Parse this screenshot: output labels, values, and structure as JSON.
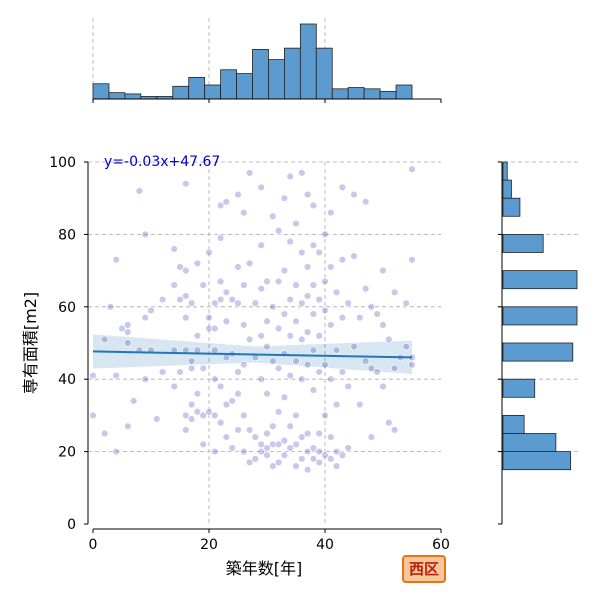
{
  "chart_data": {
    "type": "scatter",
    "xlabel": "築年数[年]",
    "ylabel": "専有面積[m2]",
    "xlim": [
      0,
      60
    ],
    "ylim": [
      0,
      100
    ],
    "xticks": [
      "0",
      "20",
      "40",
      "60"
    ],
    "yticks": [
      "0",
      "20",
      "40",
      "60",
      "80",
      "100"
    ],
    "grid": true,
    "annotation": "y=-0.03x+47.67",
    "regression": {
      "slope": -0.03,
      "intercept": 47.67,
      "x_range": [
        0,
        55
      ]
    },
    "point_color": "#3838b8",
    "line_color": "#1f77b4",
    "hist_color": "#5b9bd0",
    "top_histogram": {
      "bin_edges": [
        0,
        2.75,
        5.5,
        8.25,
        11,
        13.75,
        16.5,
        19.25,
        22,
        24.75,
        27.5,
        30.25,
        33,
        35.75,
        38.5,
        41.25,
        44,
        46.75,
        49.5,
        52.25,
        55
      ],
      "counts": [
        12,
        5,
        4,
        2,
        2,
        10,
        17,
        11,
        23,
        20,
        39,
        31,
        40,
        59,
        40,
        8,
        9,
        8,
        6,
        11
      ]
    },
    "right_histogram": {
      "bin_edges": [
        15,
        20,
        25,
        30,
        35,
        40,
        45,
        50,
        55,
        60,
        65,
        70,
        75,
        80,
        85,
        90,
        95,
        100
      ],
      "counts": [
        32,
        25,
        10,
        0,
        15,
        0,
        33,
        0,
        35,
        0,
        35,
        0,
        19,
        0,
        8,
        4,
        2
      ]
    },
    "points": [
      [
        0,
        30
      ],
      [
        0,
        41
      ],
      [
        2,
        51
      ],
      [
        2,
        25
      ],
      [
        3,
        60
      ],
      [
        4,
        73
      ],
      [
        4,
        41
      ],
      [
        4,
        20
      ],
      [
        5,
        54
      ],
      [
        6,
        55
      ],
      [
        6,
        53
      ],
      [
        6,
        50
      ],
      [
        6,
        27
      ],
      [
        7,
        34
      ],
      [
        8,
        92
      ],
      [
        8,
        48
      ],
      [
        9,
        80
      ],
      [
        9,
        57
      ],
      [
        9,
        40
      ],
      [
        10,
        59
      ],
      [
        10,
        48
      ],
      [
        11,
        29
      ],
      [
        12,
        62
      ],
      [
        12,
        42
      ],
      [
        14,
        76
      ],
      [
        14,
        66
      ],
      [
        14,
        48
      ],
      [
        14,
        38
      ],
      [
        15,
        71
      ],
      [
        15,
        62
      ],
      [
        15,
        42
      ],
      [
        16,
        94
      ],
      [
        16,
        70
      ],
      [
        16,
        63
      ],
      [
        16,
        57
      ],
      [
        16,
        48
      ],
      [
        16,
        30
      ],
      [
        16,
        26
      ],
      [
        17,
        61
      ],
      [
        17,
        45
      ],
      [
        17,
        43
      ],
      [
        17,
        33
      ],
      [
        17,
        29
      ],
      [
        18,
        72
      ],
      [
        18,
        52
      ],
      [
        18,
        48
      ],
      [
        18,
        36
      ],
      [
        18,
        31
      ],
      [
        19,
        66
      ],
      [
        19,
        43
      ],
      [
        19,
        30
      ],
      [
        19,
        22
      ],
      [
        20,
        75
      ],
      [
        20,
        57
      ],
      [
        20,
        54
      ],
      [
        20,
        31
      ],
      [
        21,
        61
      ],
      [
        21,
        54
      ],
      [
        21,
        48
      ],
      [
        21,
        40
      ],
      [
        21,
        30
      ],
      [
        21,
        20
      ],
      [
        22,
        88
      ],
      [
        22,
        79
      ],
      [
        22,
        67
      ],
      [
        22,
        62
      ],
      [
        22,
        38
      ],
      [
        22,
        28
      ],
      [
        23,
        89
      ],
      [
        23,
        64
      ],
      [
        23,
        56
      ],
      [
        23,
        46
      ],
      [
        23,
        33
      ],
      [
        23,
        24
      ],
      [
        24,
        62
      ],
      [
        24,
        47
      ],
      [
        24,
        34
      ],
      [
        24,
        21
      ],
      [
        25,
        91
      ],
      [
        25,
        71
      ],
      [
        25,
        61
      ],
      [
        25,
        42
      ],
      [
        25,
        36
      ],
      [
        25,
        26
      ],
      [
        26,
        86
      ],
      [
        26,
        66
      ],
      [
        26,
        55
      ],
      [
        26,
        44
      ],
      [
        26,
        30
      ],
      [
        26,
        20
      ],
      [
        27,
        97
      ],
      [
        27,
        72
      ],
      [
        27,
        51
      ],
      [
        27,
        26
      ],
      [
        27,
        17
      ],
      [
        28,
        61
      ],
      [
        28,
        46
      ],
      [
        28,
        24
      ],
      [
        28,
        18
      ],
      [
        29,
        93
      ],
      [
        29,
        77
      ],
      [
        29,
        65
      ],
      [
        29,
        52
      ],
      [
        29,
        40
      ],
      [
        29,
        22
      ],
      [
        29,
        20
      ],
      [
        30,
        67
      ],
      [
        30,
        56
      ],
      [
        30,
        49
      ],
      [
        30,
        36
      ],
      [
        30,
        25
      ],
      [
        30,
        21
      ],
      [
        30,
        19
      ],
      [
        31,
        85
      ],
      [
        31,
        60
      ],
      [
        31,
        45
      ],
      [
        31,
        27
      ],
      [
        31,
        22
      ],
      [
        31,
        16
      ],
      [
        32,
        81
      ],
      [
        32,
        67
      ],
      [
        32,
        54
      ],
      [
        32,
        43
      ],
      [
        32,
        31
      ],
      [
        32,
        22
      ],
      [
        32,
        17
      ],
      [
        33,
        90
      ],
      [
        33,
        70
      ],
      [
        33,
        58
      ],
      [
        33,
        47
      ],
      [
        33,
        35
      ],
      [
        33,
        23
      ],
      [
        33,
        19
      ],
      [
        34,
        96
      ],
      [
        34,
        78
      ],
      [
        34,
        62
      ],
      [
        34,
        52
      ],
      [
        34,
        41
      ],
      [
        34,
        27
      ],
      [
        34,
        21
      ],
      [
        35,
        83
      ],
      [
        35,
        66
      ],
      [
        35,
        56
      ],
      [
        35,
        45
      ],
      [
        35,
        30
      ],
      [
        35,
        22
      ],
      [
        35,
        16
      ],
      [
        36,
        97
      ],
      [
        36,
        75
      ],
      [
        36,
        61
      ],
      [
        36,
        51
      ],
      [
        36,
        40
      ],
      [
        36,
        24
      ],
      [
        36,
        18
      ],
      [
        37,
        91
      ],
      [
        37,
        71
      ],
      [
        37,
        63
      ],
      [
        37,
        53
      ],
      [
        37,
        44
      ],
      [
        37,
        25
      ],
      [
        37,
        20
      ],
      [
        37,
        15
      ],
      [
        38,
        88
      ],
      [
        38,
        77
      ],
      [
        38,
        66
      ],
      [
        38,
        58
      ],
      [
        38,
        48
      ],
      [
        38,
        37
      ],
      [
        38,
        21
      ],
      [
        38,
        18
      ],
      [
        39,
        75
      ],
      [
        39,
        62
      ],
      [
        39,
        52
      ],
      [
        39,
        42
      ],
      [
        39,
        25
      ],
      [
        39,
        20
      ],
      [
        39,
        17
      ],
      [
        40,
        80
      ],
      [
        40,
        67
      ],
      [
        40,
        59
      ],
      [
        40,
        44
      ],
      [
        40,
        30
      ],
      [
        40,
        19
      ],
      [
        41,
        86
      ],
      [
        41,
        71
      ],
      [
        41,
        55
      ],
      [
        41,
        40
      ],
      [
        41,
        24
      ],
      [
        41,
        18
      ],
      [
        42,
        64
      ],
      [
        42,
        48
      ],
      [
        42,
        33
      ],
      [
        42,
        20
      ],
      [
        42,
        16
      ],
      [
        43,
        93
      ],
      [
        43,
        73
      ],
      [
        43,
        57
      ],
      [
        43,
        42
      ],
      [
        43,
        19
      ],
      [
        44,
        61
      ],
      [
        44,
        38
      ],
      [
        44,
        21
      ],
      [
        45,
        91
      ],
      [
        45,
        74
      ],
      [
        45,
        49
      ],
      [
        46,
        57
      ],
      [
        46,
        33
      ],
      [
        47,
        89
      ],
      [
        47,
        65
      ],
      [
        47,
        45
      ],
      [
        48,
        60
      ],
      [
        48,
        43
      ],
      [
        48,
        24
      ],
      [
        49,
        58
      ],
      [
        49,
        42
      ],
      [
        50,
        70
      ],
      [
        50,
        55
      ],
      [
        50,
        38
      ],
      [
        51,
        28
      ],
      [
        51,
        51
      ],
      [
        52,
        64
      ],
      [
        52,
        43
      ],
      [
        52,
        26
      ],
      [
        53,
        46
      ],
      [
        54,
        61
      ],
      [
        54,
        49
      ],
      [
        55,
        98
      ],
      [
        55,
        73
      ],
      [
        55,
        46
      ],
      [
        55,
        44
      ]
    ]
  },
  "badge_label": "西区"
}
